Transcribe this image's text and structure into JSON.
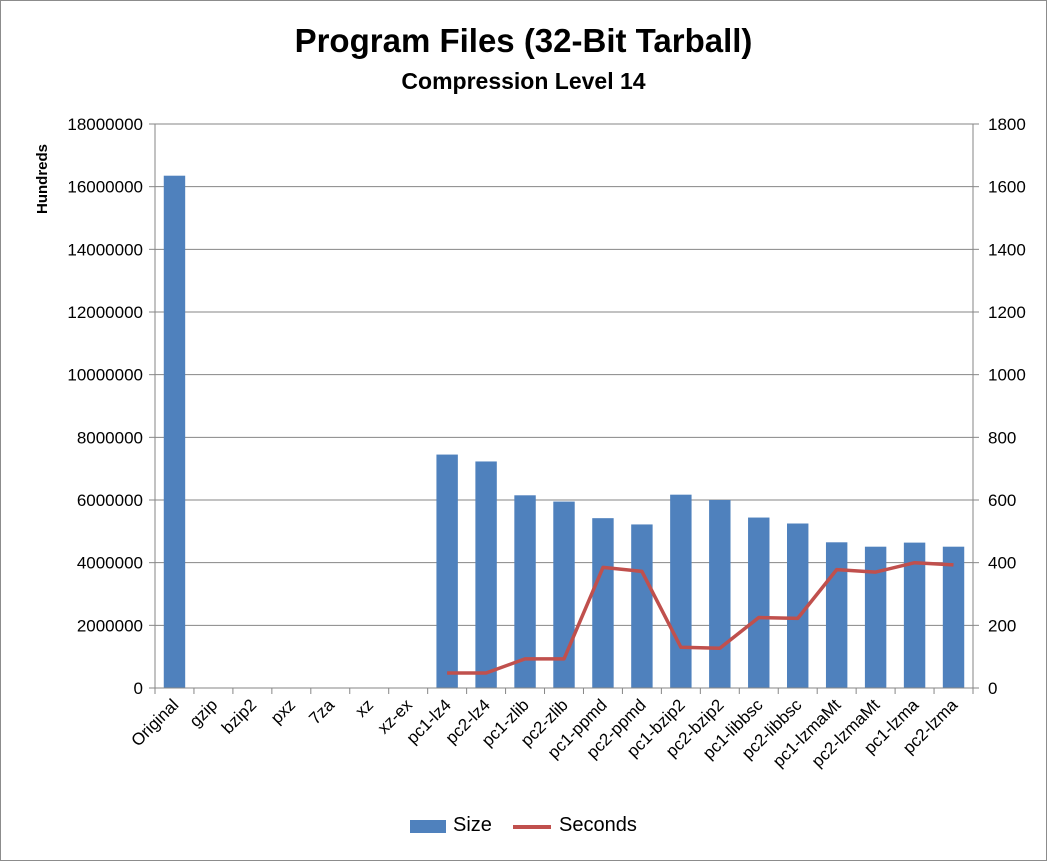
{
  "chart_data": {
    "type": "bar",
    "title": "Program Files (32-Bit Tarball)",
    "subtitle": "Compression Level 14",
    "ylabel": "Hundreds",
    "ylim": [
      0,
      18000000
    ],
    "y2lim": [
      0,
      1800
    ],
    "yticks": [
      "0",
      "2000000",
      "4000000",
      "6000000",
      "8000000",
      "10000000",
      "12000000",
      "14000000",
      "16000000",
      "18000000"
    ],
    "y2ticks": [
      "0",
      "200",
      "400",
      "600",
      "800",
      "1000",
      "1200",
      "1400",
      "1600",
      "1800"
    ],
    "categories": [
      "Original",
      "gzip",
      "bzip2",
      "pxz",
      "7za",
      "xz",
      "xz-ex",
      "pc1-lz4",
      "pc2-lz4",
      "pc1-zlib",
      "pc2-zlib",
      "pc1-ppmd",
      "pc2-ppmd",
      "pc1-bzip2",
      "pc2-bzip2",
      "pc1-libbsc",
      "pc2-libbsc",
      "pc1-lzmaMt",
      "pc2-lzmaMt",
      "pc1-lzma",
      "pc2-lzma"
    ],
    "series": [
      {
        "name": "Size",
        "type": "bar",
        "axis": "left",
        "color": "#4f81bd",
        "values": [
          16350000,
          null,
          null,
          null,
          null,
          null,
          null,
          7450000,
          7230000,
          6150000,
          5950000,
          5420000,
          5220000,
          6170000,
          6000000,
          5440000,
          5250000,
          4650000,
          4510000,
          4640000,
          4510000
        ]
      },
      {
        "name": "Seconds",
        "type": "line",
        "axis": "right",
        "color": "#c0504d",
        "values": [
          null,
          null,
          null,
          null,
          null,
          null,
          null,
          48,
          48,
          93,
          93,
          385,
          372,
          130,
          127,
          225,
          222,
          378,
          370,
          400,
          393
        ]
      }
    ],
    "grid": true,
    "legend_position": "bottom"
  }
}
